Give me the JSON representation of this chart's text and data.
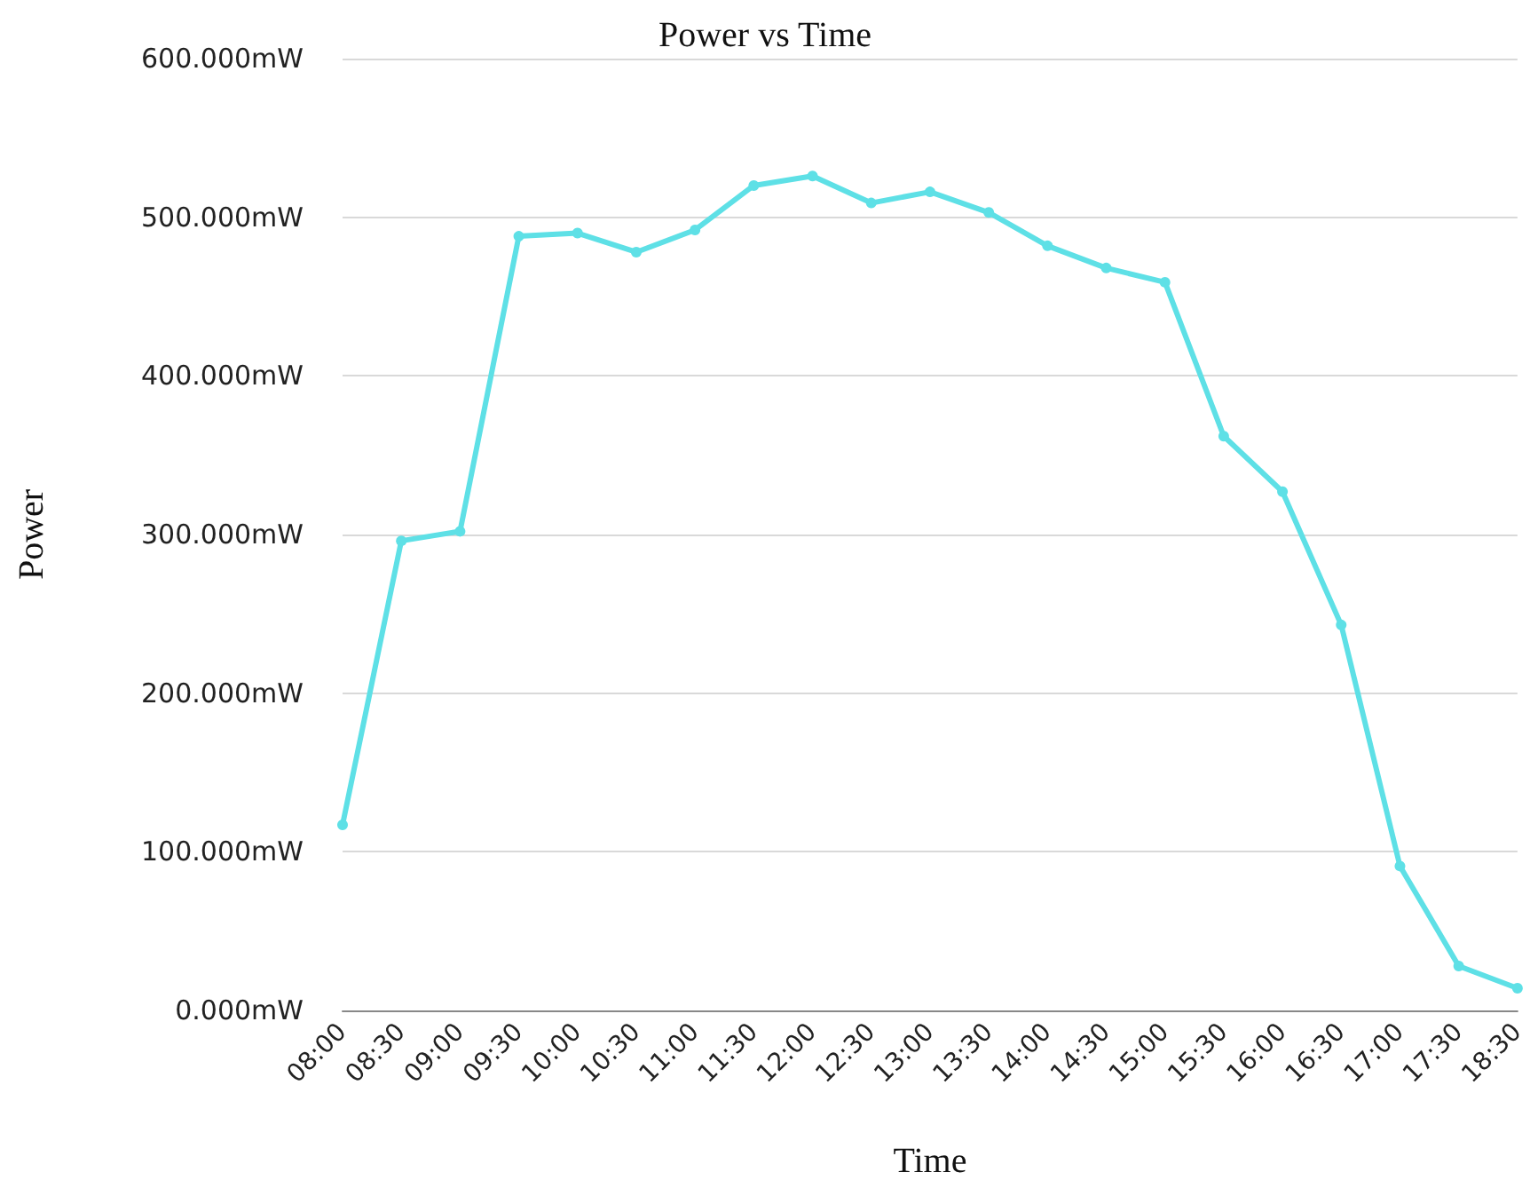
{
  "chart_data": {
    "type": "line",
    "title": "Power vs Time",
    "xlabel": "Time",
    "ylabel": "Power",
    "categories": [
      "08:00",
      "08:30",
      "09:00",
      "09:30",
      "10:00",
      "10:30",
      "11:00",
      "11:30",
      "12:00",
      "12:30",
      "13:00",
      "13:30",
      "14:00",
      "14:30",
      "15:00",
      "15:30",
      "16:00",
      "16:30",
      "17:00",
      "17:30",
      "18:30"
    ],
    "series": [
      {
        "color": "#5ee0e6",
        "values": [
          117,
          296,
          302,
          488,
          490,
          478,
          492,
          520,
          526,
          509,
          516,
          503,
          482,
          468,
          459,
          362,
          327,
          243,
          91,
          28,
          14
        ]
      }
    ],
    "ylim": [
      0,
      600
    ],
    "yticks": [
      {
        "value": 0,
        "label": "0.000mW"
      },
      {
        "value": 100,
        "label": "100.000mW"
      },
      {
        "value": 200,
        "label": "200.000mW"
      },
      {
        "value": 300,
        "label": "300.000mW"
      },
      {
        "value": 400,
        "label": "400.000mW"
      },
      {
        "value": 500,
        "label": "500.000mW"
      },
      {
        "value": 600,
        "label": "600.000mW"
      }
    ],
    "grid": "y",
    "marker": "circle",
    "line_style": "solid"
  }
}
